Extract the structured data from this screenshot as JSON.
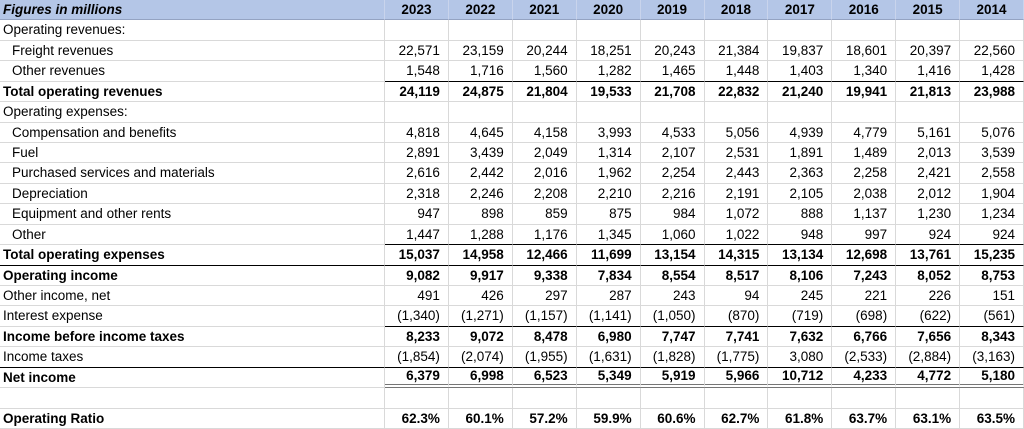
{
  "table": {
    "header": {
      "corner_label": "Figures in millions",
      "years": [
        "2023",
        "2022",
        "2021",
        "2020",
        "2019",
        "2018",
        "2017",
        "2016",
        "2015",
        "2014"
      ]
    },
    "rows": [
      {
        "label": "Operating revenues:",
        "section": true,
        "values": []
      },
      {
        "label": "Freight revenues",
        "indent": true,
        "values": [
          "22,571",
          "23,159",
          "20,244",
          "18,251",
          "20,243",
          "21,384",
          "19,837",
          "18,601",
          "20,397",
          "22,560"
        ]
      },
      {
        "label": "Other revenues",
        "indent": true,
        "rule_below": "single-values",
        "values": [
          "1,548",
          "1,716",
          "1,560",
          "1,282",
          "1,465",
          "1,448",
          "1,403",
          "1,340",
          "1,416",
          "1,428"
        ]
      },
      {
        "label": "Total operating revenues",
        "emphasis": true,
        "values": [
          "24,119",
          "24,875",
          "21,804",
          "19,533",
          "21,708",
          "22,832",
          "21,240",
          "19,941",
          "21,813",
          "23,988"
        ]
      },
      {
        "label": "Operating expenses:",
        "section": true,
        "values": []
      },
      {
        "label": "Compensation and benefits",
        "indent": true,
        "values": [
          "4,818",
          "4,645",
          "4,158",
          "3,993",
          "4,533",
          "5,056",
          "4,939",
          "4,779",
          "5,161",
          "5,076"
        ]
      },
      {
        "label": "Fuel",
        "indent": true,
        "values": [
          "2,891",
          "3,439",
          "2,049",
          "1,314",
          "2,107",
          "2,531",
          "1,891",
          "1,489",
          "2,013",
          "3,539"
        ]
      },
      {
        "label": "Purchased services and materials",
        "indent": true,
        "values": [
          "2,616",
          "2,442",
          "2,016",
          "1,962",
          "2,254",
          "2,443",
          "2,363",
          "2,258",
          "2,421",
          "2,558"
        ]
      },
      {
        "label": "Depreciation",
        "indent": true,
        "values": [
          "2,318",
          "2,246",
          "2,208",
          "2,210",
          "2,216",
          "2,191",
          "2,105",
          "2,038",
          "2,012",
          "1,904"
        ]
      },
      {
        "label": "Equipment and other rents",
        "indent": true,
        "values": [
          "947",
          "898",
          "859",
          "875",
          "984",
          "1,072",
          "888",
          "1,137",
          "1,230",
          "1,234"
        ]
      },
      {
        "label": "Other",
        "indent": true,
        "rule_below": "single-values",
        "values": [
          "1,447",
          "1,288",
          "1,176",
          "1,345",
          "1,060",
          "1,022",
          "948",
          "997",
          "924",
          "924"
        ]
      },
      {
        "label": "Total operating expenses",
        "emphasis": true,
        "rule_below": "single-full",
        "values": [
          "15,037",
          "14,958",
          "12,466",
          "11,699",
          "13,154",
          "14,315",
          "13,134",
          "12,698",
          "13,761",
          "15,235"
        ]
      },
      {
        "label": "Operating income",
        "emphasis": true,
        "values": [
          "9,082",
          "9,917",
          "9,338",
          "7,834",
          "8,554",
          "8,517",
          "8,106",
          "7,243",
          "8,052",
          "8,753"
        ]
      },
      {
        "label": "Other income, net",
        "values": [
          "491",
          "426",
          "297",
          "287",
          "243",
          "94",
          "245",
          "221",
          "226",
          "151"
        ]
      },
      {
        "label": "Interest expense",
        "rule_below": "single-values",
        "values": [
          "(1,340)",
          "(1,271)",
          "(1,157)",
          "(1,141)",
          "(1,050)",
          "(870)",
          "(719)",
          "(698)",
          "(622)",
          "(561)"
        ]
      },
      {
        "label": "Income before income taxes",
        "emphasis": true,
        "values": [
          "8,233",
          "9,072",
          "8,478",
          "6,980",
          "7,747",
          "7,741",
          "7,632",
          "6,766",
          "7,656",
          "8,343"
        ]
      },
      {
        "label": "Income taxes",
        "rule_below": "single-full",
        "values": [
          "(1,854)",
          "(2,074)",
          "(1,955)",
          "(1,631)",
          "(1,828)",
          "(1,775)",
          "3,080",
          "(2,533)",
          "(2,884)",
          "(3,163)"
        ]
      },
      {
        "label": "Net income",
        "emphasis": true,
        "rule_below": "double-values",
        "values": [
          "6,379",
          "6,998",
          "6,523",
          "5,349",
          "5,919",
          "5,966",
          "10,712",
          "4,233",
          "4,772",
          "5,180"
        ]
      },
      {
        "label": "",
        "section": true,
        "values": []
      },
      {
        "label": "Operating Ratio",
        "emphasis": true,
        "values": [
          "62.3%",
          "60.1%",
          "57.2%",
          "59.9%",
          "60.6%",
          "62.7%",
          "61.8%",
          "63.7%",
          "63.1%",
          "63.5%"
        ]
      }
    ]
  }
}
